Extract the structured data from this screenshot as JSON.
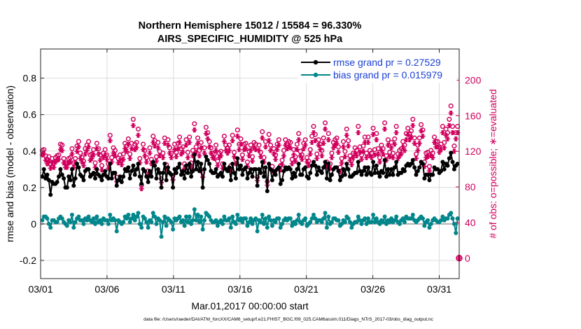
{
  "chart_data": {
    "type": "line",
    "title": "Northern Hemisphere 15012 / 15584 = 96.330%",
    "subtitle": "AIRS_SPECIFIC_HUMIDITY @ 525 hPa",
    "xlabel": "Mar.01,2017 00:00:00 start",
    "ylabel": "rmse and bias (model - observation)",
    "y2label": "# of obs: o=possible; ∗=evaluated",
    "footnote": "data file: /Users/raeder/DAI/ATM_forcXX/CAM6_setup/f.e21.FHIST_BGC.f09_025.CAM6assim.011/Diags_NTrS_2017-03/obs_diag_output.nc",
    "xlim": [
      0,
      31.5
    ],
    "ylim": [
      -0.3,
      0.96
    ],
    "y2lim": [
      -23,
      235
    ],
    "xticks": [
      0,
      5,
      10,
      15,
      20,
      25,
      30
    ],
    "xtick_labels": [
      "03/01",
      "03/06",
      "03/11",
      "03/16",
      "03/21",
      "03/26",
      "03/31"
    ],
    "yticks": [
      -0.2,
      0,
      0.2,
      0.4,
      0.6,
      0.8
    ],
    "ytick_labels": [
      "-0.2",
      "0",
      "0.2",
      "0.4",
      "0.6",
      "0.8"
    ],
    "y2ticks": [
      0,
      40,
      80,
      120,
      160,
      200
    ],
    "y2tick_labels": [
      "0",
      "40",
      "80",
      "120",
      "160",
      "200"
    ],
    "grid": true,
    "legend_position": "top-right",
    "series": [
      {
        "name": "rmse",
        "label": "rmse grand pr = 0.27529",
        "color": "#000000",
        "marker": "dot",
        "axis": "left",
        "values": [
          0.26,
          0.3,
          0.25,
          0.27,
          0.24,
          0.16,
          0.23,
          0.22,
          0.22,
          0.23,
          0.26,
          0.3,
          0.27,
          0.25,
          0.2,
          0.2,
          0.26,
          0.24,
          0.3,
          0.21,
          0.25,
          0.33,
          0.31,
          0.27,
          0.26,
          0.24,
          0.29,
          0.3,
          0.3,
          0.26,
          0.27,
          0.28,
          0.25,
          0.3,
          0.27,
          0.26,
          0.24,
          0.27,
          0.29,
          0.26,
          0.25,
          0.33,
          0.25,
          0.28,
          0.28,
          0.21,
          0.24,
          0.26,
          0.23,
          0.26,
          0.3,
          0.29,
          0.31,
          0.25,
          0.29,
          0.32,
          0.27,
          0.3,
          0.33,
          0.26,
          0.22,
          0.3,
          0.29,
          0.26,
          0.23,
          0.29,
          0.26,
          0.34,
          0.32,
          0.25,
          0.3,
          0.28,
          0.2,
          0.28,
          0.33,
          0.24,
          0.31,
          0.28,
          0.27,
          0.2,
          0.3,
          0.28,
          0.31,
          0.33,
          0.27,
          0.29,
          0.25,
          0.32,
          0.28,
          0.33,
          0.26,
          0.29,
          0.38,
          0.3,
          0.34,
          0.29,
          0.33,
          0.2,
          0.3,
          0.37,
          0.35,
          0.33,
          0.29,
          0.28,
          0.28,
          0.3,
          0.26,
          0.27,
          0.28,
          0.26,
          0.33,
          0.3,
          0.29,
          0.31,
          0.24,
          0.33,
          0.28,
          0.25,
          0.36,
          0.3,
          0.32,
          0.27,
          0.3,
          0.31,
          0.25,
          0.28,
          0.3,
          0.26,
          0.3,
          0.3,
          0.21,
          0.3,
          0.28,
          0.34,
          0.26,
          0.31,
          0.18,
          0.33,
          0.3,
          0.24,
          0.29,
          0.27,
          0.3,
          0.31,
          0.22,
          0.24,
          0.29,
          0.31,
          0.3,
          0.31,
          0.3,
          0.25,
          0.28,
          0.26,
          0.3,
          0.33,
          0.27,
          0.27,
          0.3,
          0.31,
          0.26,
          0.25,
          0.28,
          0.32,
          0.34,
          0.32,
          0.27,
          0.31,
          0.29,
          0.28,
          0.31,
          0.34,
          0.25,
          0.33,
          0.24,
          0.27,
          0.3,
          0.31,
          0.31,
          0.29,
          0.24,
          0.26,
          0.3,
          0.27,
          0.33,
          0.3,
          0.26,
          0.26,
          0.27,
          0.28,
          0.28,
          0.34,
          0.29,
          0.27,
          0.29,
          0.31,
          0.27,
          0.31,
          0.28,
          0.27,
          0.34,
          0.28,
          0.32,
          0.28,
          0.26,
          0.29,
          0.28,
          0.35,
          0.26,
          0.3,
          0.27,
          0.3,
          0.27,
          0.31,
          0.34,
          0.27,
          0.28,
          0.28,
          0.3,
          0.29,
          0.32,
          0.33,
          0.32,
          0.33,
          0.35,
          0.31,
          0.27,
          0.29,
          0.31,
          0.34,
          0.33,
          0.25,
          0.27,
          0.27,
          0.24,
          0.27,
          0.27,
          0.31,
          0.3,
          0.3,
          0.28,
          0.29,
          0.34,
          0.3,
          0.33,
          0.32,
          0.36,
          0.39,
          0.34,
          0.3,
          0.32,
          0.33
        ]
      },
      {
        "name": "bias",
        "label": "bias grand pr = 0.015979",
        "color": "#00868b",
        "marker": "dot",
        "axis": "left",
        "values": [
          0.02,
          0.04,
          0.04,
          0.03,
          0.0,
          -0.02,
          0.02,
          0.02,
          0.01,
          0.01,
          0.03,
          0.04,
          0.03,
          0.01,
          0.0,
          -0.01,
          0.02,
          0.01,
          0.05,
          -0.02,
          0.01,
          0.03,
          0.04,
          0.02,
          0.02,
          0.0,
          0.03,
          0.02,
          0.04,
          0.02,
          0.01,
          0.03,
          0.0,
          0.04,
          0.01,
          0.02,
          0.0,
          0.03,
          0.02,
          0.02,
          0.0,
          0.05,
          0.02,
          0.03,
          0.02,
          -0.04,
          0.02,
          0.01,
          0.0,
          0.01,
          0.04,
          0.03,
          0.05,
          0.01,
          0.03,
          0.05,
          0.02,
          0.04,
          0.06,
          0.0,
          -0.02,
          0.04,
          0.03,
          0.01,
          -0.02,
          0.02,
          0.01,
          0.06,
          0.04,
          0.0,
          0.03,
          0.02,
          -0.07,
          0.01,
          0.04,
          -0.01,
          0.03,
          0.02,
          0.01,
          -0.03,
          0.03,
          0.02,
          0.03,
          0.04,
          0.01,
          0.02,
          -0.01,
          0.04,
          0.01,
          0.04,
          0.0,
          0.02,
          0.08,
          0.02,
          0.05,
          0.01,
          0.04,
          -0.03,
          0.02,
          0.06,
          0.05,
          0.04,
          0.02,
          0.01,
          0.01,
          0.02,
          -0.01,
          0.01,
          0.02,
          0.0,
          0.04,
          0.02,
          0.02,
          0.03,
          -0.02,
          0.04,
          0.01,
          0.0,
          0.05,
          0.02,
          0.03,
          0.01,
          0.03,
          0.03,
          -0.01,
          0.01,
          0.03,
          0.0,
          0.02,
          0.03,
          -0.04,
          0.02,
          0.01,
          0.05,
          0.0,
          0.03,
          -0.02,
          0.04,
          0.02,
          -0.01,
          0.02,
          0.01,
          0.03,
          0.03,
          -0.02,
          0.0,
          0.02,
          0.03,
          0.02,
          0.03,
          0.03,
          -0.01,
          0.01,
          0.0,
          0.02,
          0.05,
          0.01,
          0.0,
          0.02,
          0.03,
          -0.01,
          0.0,
          0.01,
          0.03,
          0.05,
          0.03,
          0.01,
          0.02,
          0.02,
          0.01,
          0.03,
          0.06,
          -0.02,
          0.04,
          0.0,
          0.01,
          0.03,
          0.03,
          0.02,
          0.02,
          -0.01,
          0.0,
          0.02,
          0.01,
          0.04,
          0.03,
          0.01,
          -0.02,
          0.0,
          0.01,
          0.01,
          0.04,
          0.02,
          0.0,
          0.02,
          0.03,
          0.0,
          0.03,
          0.01,
          0.01,
          0.05,
          0.01,
          0.03,
          0.01,
          0.0,
          0.02,
          0.01,
          0.04,
          0.0,
          0.02,
          0.01,
          0.03,
          0.01,
          0.02,
          0.04,
          0.01,
          0.0,
          0.02,
          0.03,
          0.01,
          0.04,
          0.03,
          0.03,
          0.03,
          0.05,
          0.02,
          0.01,
          0.02,
          0.03,
          0.04,
          0.03,
          -0.01,
          0.01,
          0.02,
          -0.02,
          0.0,
          0.02,
          0.03,
          0.02,
          0.01,
          0.01,
          0.02,
          0.04,
          0.02,
          0.03,
          0.03,
          0.05,
          0.06,
          0.03,
          0.0,
          -0.05,
          0.03
        ]
      },
      {
        "name": "possible",
        "label": "o=possible",
        "color": "#d1005e",
        "marker": "circle",
        "axis": "right",
        "values": [
          121,
          122,
          115,
          111,
          114,
          106,
          112,
          107,
          113,
          115,
          116,
          128,
          127,
          112,
          107,
          107,
          112,
          113,
          123,
          107,
          112,
          126,
          131,
          118,
          113,
          109,
          123,
          127,
          131,
          116,
          117,
          122,
          107,
          129,
          123,
          116,
          104,
          118,
          122,
          116,
          106,
          138,
          113,
          124,
          121,
          91,
          112,
          116,
          110,
          117,
          129,
          126,
          134,
          117,
          129,
          156,
          128,
          130,
          145,
          112,
          82,
          128,
          121,
          113,
          98,
          124,
          111,
          137,
          132,
          114,
          130,
          120,
          89,
          118,
          135,
          105,
          133,
          124,
          118,
          93,
          128,
          119,
          129,
          136,
          123,
          125,
          106,
          133,
          119,
          136,
          107,
          121,
          151,
          125,
          135,
          121,
          130,
          96,
          124,
          147,
          141,
          131,
          124,
          118,
          117,
          127,
          109,
          118,
          120,
          106,
          137,
          127,
          124,
          127,
          104,
          138,
          119,
          111,
          144,
          128,
          134,
          116,
          128,
          129,
          108,
          120,
          127,
          114,
          130,
          128,
          91,
          127,
          119,
          142,
          113,
          131,
          86,
          139,
          127,
          103,
          123,
          116,
          128,
          133,
          104,
          110,
          121,
          133,
          129,
          131,
          130,
          111,
          122,
          114,
          128,
          140,
          120,
          116,
          129,
          133,
          113,
          109,
          122,
          137,
          148,
          139,
          117,
          133,
          128,
          121,
          135,
          152,
          108,
          140,
          106,
          118,
          130,
          133,
          135,
          125,
          102,
          112,
          131,
          120,
          145,
          132,
          115,
          110,
          118,
          124,
          121,
          148,
          125,
          116,
          126,
          136,
          118,
          136,
          121,
          118,
          146,
          122,
          140,
          123,
          113,
          127,
          123,
          152,
          115,
          133,
          119,
          130,
          118,
          134,
          148,
          117,
          121,
          123,
          131,
          127,
          140,
          146,
          140,
          143,
          156,
          135,
          117,
          127,
          135,
          150,
          144,
          108,
          118,
          119,
          103,
          121,
          118,
          136,
          131,
          131,
          125,
          128,
          148,
          130,
          145,
          141,
          156,
          171,
          148,
          126,
          141,
          148
        ]
      },
      {
        "name": "evaluated",
        "label": "∗=evaluated",
        "color": "#d1005e",
        "marker": "star",
        "axis": "right",
        "values": [
          116,
          117,
          110,
          106,
          109,
          101,
          107,
          102,
          108,
          110,
          111,
          122,
          121,
          107,
          102,
          102,
          107,
          108,
          117,
          102,
          107,
          120,
          125,
          112,
          108,
          104,
          117,
          121,
          125,
          110,
          112,
          116,
          102,
          123,
          117,
          110,
          99,
          113,
          116,
          111,
          101,
          132,
          108,
          118,
          115,
          86,
          107,
          110,
          105,
          111,
          123,
          120,
          128,
          112,
          123,
          149,
          122,
          124,
          138,
          107,
          78,
          122,
          115,
          108,
          93,
          118,
          106,
          130,
          126,
          109,
          124,
          115,
          85,
          113,
          129,
          100,
          127,
          118,
          113,
          88,
          122,
          114,
          123,
          130,
          117,
          119,
          101,
          127,
          113,
          130,
          102,
          115,
          144,
          119,
          129,
          115,
          124,
          91,
          118,
          140,
          134,
          125,
          118,
          113,
          112,
          121,
          104,
          113,
          115,
          101,
          131,
          121,
          118,
          121,
          99,
          132,
          114,
          106,
          137,
          122,
          128,
          111,
          122,
          123,
          103,
          115,
          121,
          109,
          124,
          122,
          87,
          121,
          114,
          135,
          108,
          125,
          82,
          132,
          121,
          98,
          117,
          111,
          122,
          127,
          99,
          105,
          115,
          127,
          123,
          125,
          124,
          106,
          116,
          109,
          122,
          133,
          115,
          111,
          123,
          127,
          108,
          104,
          117,
          130,
          141,
          132,
          112,
          127,
          122,
          115,
          129,
          145,
          103,
          133,
          101,
          113,
          124,
          127,
          129,
          119,
          97,
          107,
          125,
          114,
          138,
          126,
          110,
          105,
          113,
          118,
          115,
          141,
          119,
          111,
          120,
          130,
          113,
          130,
          115,
          113,
          139,
          116,
          133,
          117,
          108,
          121,
          117,
          145,
          110,
          127,
          114,
          124,
          113,
          128,
          141,
          112,
          115,
          117,
          125,
          121,
          133,
          139,
          133,
          136,
          149,
          129,
          112,
          121,
          129,
          143,
          137,
          103,
          113,
          114,
          98,
          115,
          113,
          130,
          125,
          125,
          119,
          122,
          141,
          124,
          138,
          134,
          149,
          163,
          141,
          120,
          134,
          141
        ]
      }
    ],
    "extra_points": [
      {
        "x": 31.5,
        "y2": 0,
        "marker": "circle-star",
        "color": "#d1005e"
      }
    ]
  }
}
